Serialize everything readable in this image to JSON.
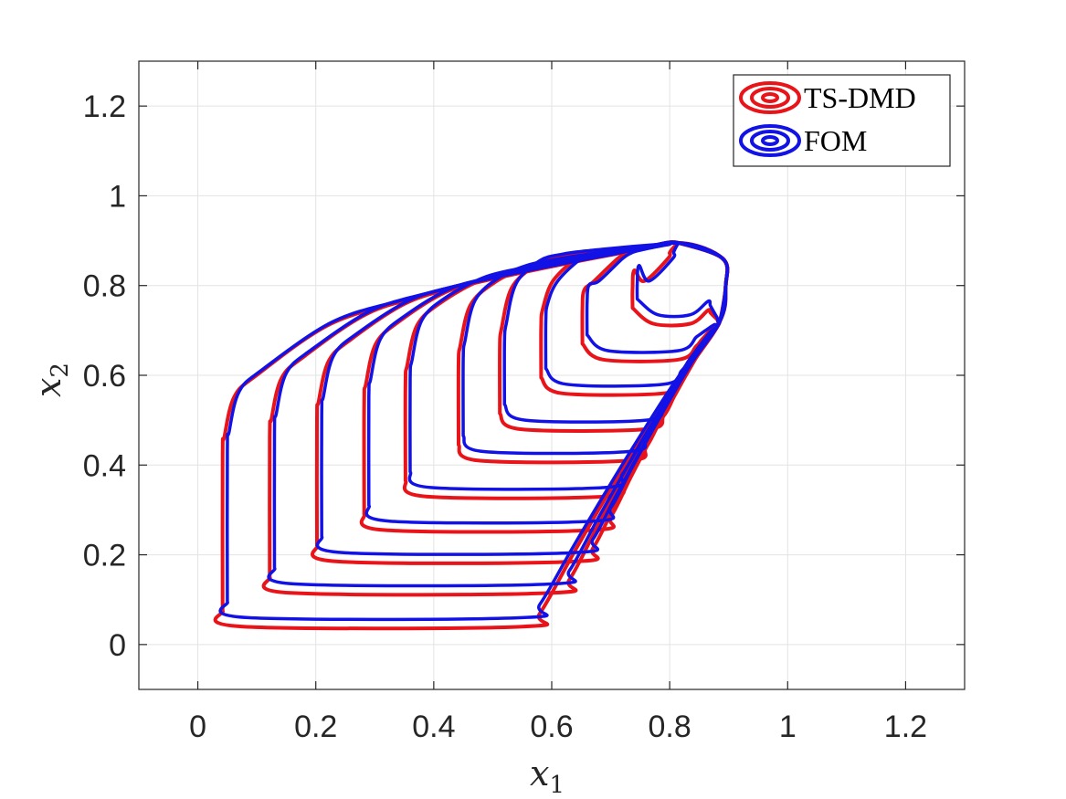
{
  "chart_data": {
    "type": "line",
    "title": "",
    "xlabel": "x",
    "xlabel_sub": "1",
    "ylabel": "x",
    "ylabel_sub": "2",
    "xlim": [
      -0.1,
      1.3
    ],
    "ylim": [
      -0.1,
      1.3
    ],
    "xticks": [
      0,
      0.2,
      0.4,
      0.6,
      0.8,
      1,
      1.2
    ],
    "xtick_labels": [
      "0",
      "0.2",
      "0.4",
      "0.6",
      "0.8",
      "1",
      "1.2"
    ],
    "yticks": [
      0,
      0.2,
      0.4,
      0.6,
      0.8,
      1,
      1.2
    ],
    "ytick_labels": [
      "0",
      "0.2",
      "0.4",
      "0.6",
      "0.8",
      "1",
      "1.2"
    ],
    "grid": true,
    "legend_position": "top-right",
    "series": [
      {
        "name": "TS-DMD",
        "color": "#e8141a"
      },
      {
        "name": "FOM",
        "color": "#1212e6"
      }
    ],
    "trajectories": [
      {
        "x0": 0.05,
        "y_bottom": 0.06,
        "x_turn": 0.58
      },
      {
        "x0": 0.13,
        "y_bottom": 0.135,
        "x_turn": 0.63
      },
      {
        "x0": 0.21,
        "y_bottom": 0.205,
        "x_turn": 0.67
      },
      {
        "x0": 0.29,
        "y_bottom": 0.275,
        "x_turn": 0.7
      },
      {
        "x0": 0.36,
        "y_bottom": 0.35,
        "x_turn": 0.72
      },
      {
        "x0": 0.45,
        "y_bottom": 0.43,
        "x_turn": 0.76
      },
      {
        "x0": 0.52,
        "y_bottom": 0.5,
        "x_turn": 0.79
      },
      {
        "x0": 0.59,
        "y_bottom": 0.58,
        "x_turn": 0.82
      },
      {
        "x0": 0.66,
        "y_bottom": 0.655,
        "x_turn": 0.845
      },
      {
        "x0": 0.745,
        "y_bottom": 0.735,
        "x_turn": 0.865
      }
    ],
    "tsdmd_offset": {
      "x": -0.008,
      "y": -0.02
    }
  }
}
